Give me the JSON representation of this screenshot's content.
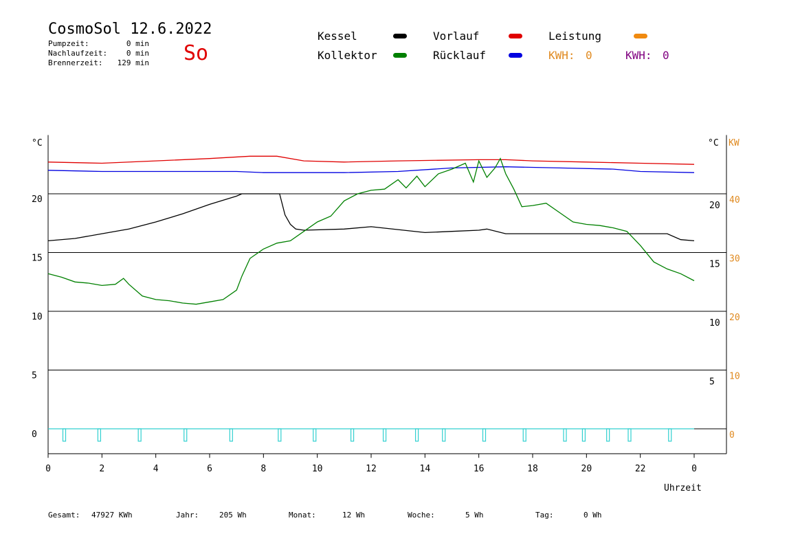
{
  "header": {
    "title": "CosmoSol 12.6.2022",
    "day_label": "So",
    "stats": [
      {
        "label": "Pumpzeit:",
        "value": "0 min"
      },
      {
        "label": "Nachlaufzeit:",
        "value": "0 min"
      },
      {
        "label": "Brennerzeit:",
        "value": "129 min"
      }
    ]
  },
  "legend": {
    "kessel": {
      "label": "Kessel",
      "color": "#000000"
    },
    "vorlauf": {
      "label": "Vorlauf",
      "color": "#e00000"
    },
    "leistung": {
      "label": "Leistung",
      "color": "#f08a10"
    },
    "kollektor": {
      "label": "Kollektor",
      "color": "#008000"
    },
    "ruecklauf": {
      "label": "Rücklauf",
      "color": "#0000e0"
    },
    "kwh1": {
      "label": "KWH:",
      "value": "0",
      "color": "#e08a20"
    },
    "kwh2": {
      "label": "KWH:",
      "value": "0",
      "color": "#800080"
    }
  },
  "footer": {
    "gesamt": {
      "label": "Gesamt:",
      "value": "47927 KWh"
    },
    "jahr": {
      "label": "Jahr:",
      "value": "205 Wh"
    },
    "monat": {
      "label": "Monat:",
      "value": "12 Wh"
    },
    "woche": {
      "label": "Woche:",
      "value": "5 Wh"
    },
    "tag": {
      "label": "Tag:",
      "value": "0 Wh"
    }
  },
  "chart_data": {
    "type": "line",
    "xlabel": "Uhrzeit",
    "ylabel_left": "°C",
    "ylabel_right": "°C",
    "ylabel_right2": "KW",
    "x_ticks": [
      "0",
      "2",
      "4",
      "6",
      "8",
      "10",
      "12",
      "14",
      "16",
      "18",
      "20",
      "22",
      "0"
    ],
    "y_ticks_left": [
      "0",
      "5",
      "10",
      "15",
      "20"
    ],
    "y_ticks_right": [
      "5",
      "10",
      "15",
      "20"
    ],
    "y_ticks_kw": [
      "0",
      "10",
      "20",
      "30",
      "40"
    ],
    "xlim": [
      0,
      24
    ],
    "ylim": [
      -2,
      25
    ],
    "grid": true,
    "series": [
      {
        "name": "Vorlauf",
        "color": "#e00000",
        "x": [
          0,
          2,
          4,
          6,
          7.5,
          8.5,
          9.5,
          11,
          13,
          16,
          17,
          18,
          20,
          22,
          24
        ],
        "y": [
          22.7,
          22.6,
          22.8,
          23.0,
          23.2,
          23.2,
          22.8,
          22.7,
          22.8,
          22.9,
          22.9,
          22.8,
          22.7,
          22.6,
          22.5
        ]
      },
      {
        "name": "Rücklauf",
        "color": "#0000e0",
        "x": [
          0,
          2,
          4,
          7,
          8,
          9,
          11,
          13,
          15,
          17,
          19,
          21,
          22,
          24
        ],
        "y": [
          22.0,
          21.9,
          21.9,
          21.9,
          21.8,
          21.8,
          21.8,
          21.9,
          22.2,
          22.3,
          22.2,
          22.1,
          21.9,
          21.8
        ]
      },
      {
        "name": "Kessel",
        "color": "#000000",
        "x": [
          0,
          1,
          2,
          3,
          4,
          5,
          6,
          7,
          7.2,
          8.6,
          8.8,
          9,
          9.2,
          9.5,
          11,
          12,
          14,
          15,
          16,
          16.3,
          17,
          18,
          20,
          21,
          22,
          23,
          23.5,
          24
        ],
        "y": [
          16.0,
          16.2,
          16.6,
          17.0,
          17.6,
          18.3,
          19.1,
          19.8,
          20.0,
          20.0,
          18.2,
          17.4,
          17.0,
          16.9,
          17.0,
          17.2,
          16.7,
          16.8,
          16.9,
          17.0,
          16.6,
          16.6,
          16.6,
          16.6,
          16.6,
          16.6,
          16.1,
          16.0
        ]
      },
      {
        "name": "Kollektor",
        "color": "#008000",
        "x": [
          0,
          0.5,
          1,
          1.5,
          2,
          2.5,
          2.8,
          3,
          3.5,
          4,
          4.5,
          5,
          5.5,
          6,
          6.5,
          7,
          7.2,
          7.5,
          8,
          8.5,
          9,
          9.5,
          10,
          10.5,
          11,
          11.5,
          12,
          12.5,
          13,
          13.3,
          13.7,
          14,
          14.5,
          15,
          15.5,
          15.8,
          16,
          16.3,
          16.6,
          16.8,
          17,
          17.3,
          17.6,
          18,
          18.5,
          19,
          19.5,
          20,
          20.5,
          21,
          21.5,
          22,
          22.5,
          23,
          23.5,
          24
        ],
        "y": [
          13.2,
          12.9,
          12.5,
          12.4,
          12.2,
          12.3,
          12.8,
          12.3,
          11.3,
          11.0,
          10.9,
          10.7,
          10.6,
          10.8,
          11.0,
          11.8,
          13.0,
          14.5,
          15.3,
          15.8,
          16.0,
          16.8,
          17.6,
          18.1,
          19.4,
          20.0,
          20.3,
          20.4,
          21.2,
          20.5,
          21.5,
          20.6,
          21.7,
          22.1,
          22.6,
          21.0,
          22.8,
          21.4,
          22.2,
          23.0,
          21.7,
          20.4,
          18.9,
          19.0,
          19.2,
          18.4,
          17.6,
          17.4,
          17.3,
          17.1,
          16.8,
          15.6,
          14.2,
          13.6,
          13.2,
          12.6
        ]
      }
    ],
    "pulses": {
      "name": "Leistung",
      "color": "#30d0d0",
      "x": [
        0.6,
        1.9,
        3.4,
        5.1,
        6.8,
        8.6,
        9.9,
        11.3,
        12.5,
        13.7,
        14.7,
        16.2,
        17.7,
        19.2,
        19.9,
        20.8,
        21.6,
        23.1
      ]
    }
  }
}
